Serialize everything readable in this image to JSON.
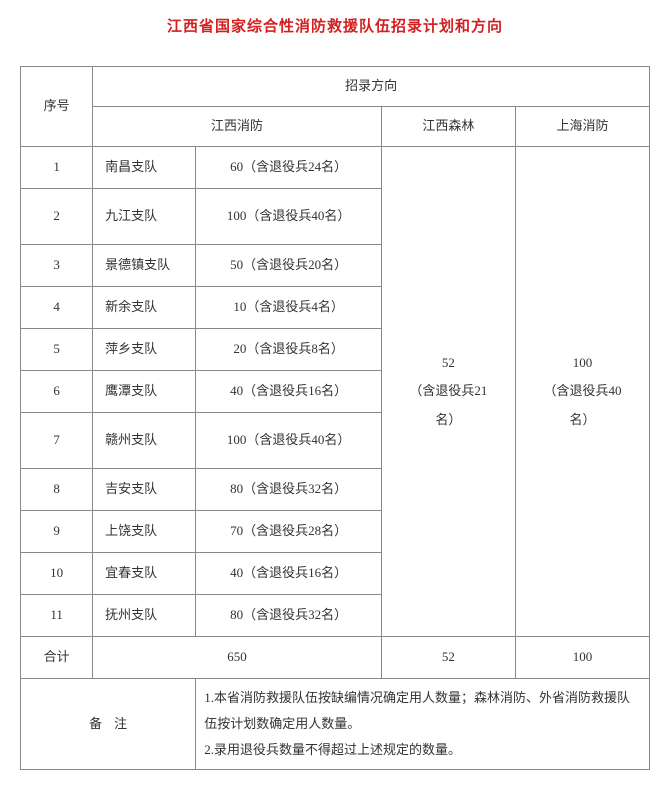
{
  "title": "江西省国家综合性消防救援队伍招录计划和方向",
  "headers": {
    "seq": "序号",
    "direction": "招录方向",
    "jx_fire": "江西消防",
    "jx_forest": "江西森林",
    "sh_fire": "上海消防"
  },
  "rows": [
    {
      "seq": "1",
      "team": "南昌支队",
      "quota": "60（含退役兵24名）"
    },
    {
      "seq": "2",
      "team": "九江支队",
      "quota": "100（含退役兵40名）"
    },
    {
      "seq": "3",
      "team": "景德镇支队",
      "quota": "50（含退役兵20名）"
    },
    {
      "seq": "4",
      "team": "新余支队",
      "quota": "10（含退役兵4名）"
    },
    {
      "seq": "5",
      "team": "萍乡支队",
      "quota": "20（含退役兵8名）"
    },
    {
      "seq": "6",
      "team": "鹰潭支队",
      "quota": "40（含退役兵16名）"
    },
    {
      "seq": "7",
      "team": "赣州支队",
      "quota": "100（含退役兵40名）"
    },
    {
      "seq": "8",
      "team": "吉安支队",
      "quota": "80（含退役兵32名）"
    },
    {
      "seq": "9",
      "team": "上饶支队",
      "quota": "70（含退役兵28名）"
    },
    {
      "seq": "10",
      "team": "宜春支队",
      "quota": "40（含退役兵16名）"
    },
    {
      "seq": "11",
      "team": "抚州支队",
      "quota": "80（含退役兵32名）"
    }
  ],
  "forest": {
    "line1": "52",
    "line2": "（含退役兵21",
    "line3": "名）"
  },
  "shanghai": {
    "line1": "100",
    "line2": "（含退役兵40",
    "line3": "名）"
  },
  "totals": {
    "label": "合计",
    "jx_fire": "650",
    "jx_forest": "52",
    "sh_fire": "100"
  },
  "remark": {
    "label": "备注",
    "line1": "1.本省消防救援队伍按缺编情况确定用人数量；森林消防、外省消防救援队伍按计划数确定用人数量。",
    "line2": "2.录用退役兵数量不得超过上述规定的数量。"
  },
  "styling": {
    "title_color": "#d42020",
    "border_color": "#888888",
    "text_color": "#333333",
    "background_color": "#ffffff",
    "title_fontsize": 15,
    "cell_fontsize": 13,
    "font_family": "SimSun"
  }
}
